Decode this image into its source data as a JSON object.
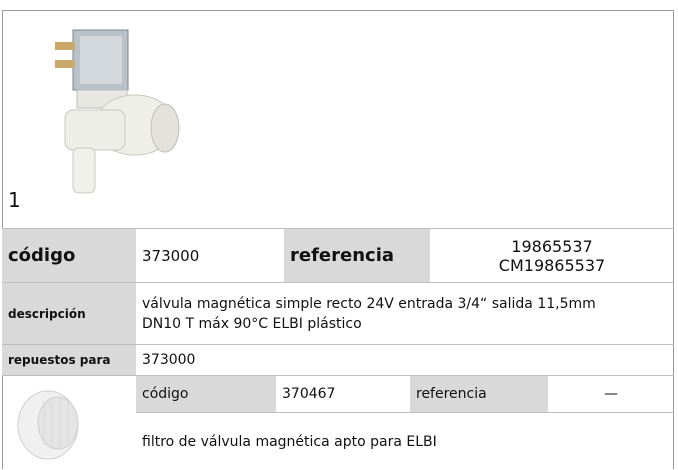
{
  "image_label": "1",
  "product": {
    "code_label": "código",
    "code": "373000",
    "reference_label": "referencia",
    "references": [
      "19865537",
      "CM19865537"
    ],
    "description_label": "descripción",
    "description": [
      "válvula magnética  simple recto 24V entrada 3/4“ salida 11,5mm",
      "DN10 T máx 90°C ELBI plástico"
    ],
    "spares_label": "repuestos para",
    "spares_for": "373000"
  },
  "spare": {
    "code_label": "código",
    "code": "370467",
    "reference_label": "referencia",
    "reference": "—",
    "description": "filtro de válvula magnética  apto para ELBI"
  }
}
